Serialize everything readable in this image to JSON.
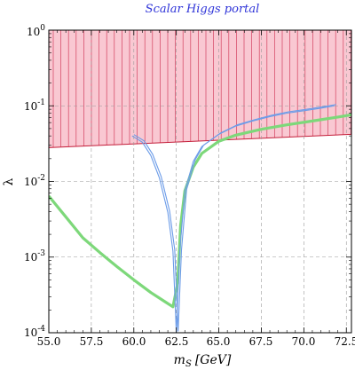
{
  "chart_data": {
    "type": "line",
    "title": "Scalar Higgs portal",
    "xlabel": "m",
    "xlabel_sub": "S",
    "xlabel_unit": "[GeV]",
    "ylabel": "λ",
    "xlim": [
      55.0,
      72.8
    ],
    "ylim": [
      0.0001,
      1
    ],
    "yscale": "log",
    "grid": true,
    "x_ticks": [
      "55.0",
      "57.5",
      "60.0",
      "62.5",
      "65.0",
      "67.5",
      "70.0",
      "72.5"
    ],
    "x_tick_values": [
      55.0,
      57.5,
      60.0,
      62.5,
      65.0,
      67.5,
      70.0,
      72.5
    ],
    "y_tick_values": [
      0.0001,
      0.001,
      0.01,
      0.1,
      1
    ],
    "y_ticks": [
      {
        "base": "10",
        "exp": "-4"
      },
      {
        "base": "10",
        "exp": "-3"
      },
      {
        "base": "10",
        "exp": "-2"
      },
      {
        "base": "10",
        "exp": "-1"
      },
      {
        "base": "10",
        "exp": "0"
      }
    ],
    "excluded_region": {
      "lower_boundary": [
        [
          55.0,
          0.028
        ],
        [
          72.8,
          0.042
        ]
      ],
      "fill": "#f9c8d2",
      "hatch": "#d2405f",
      "edge": "#c41e3a"
    },
    "series": [
      {
        "color": "#7dd87a",
        "points": [
          [
            55.0,
            0.0064
          ],
          [
            56.0,
            0.0034
          ],
          [
            57.0,
            0.0018
          ],
          [
            58.0,
            0.00115
          ],
          [
            59.0,
            0.00075
          ],
          [
            60.0,
            0.0005
          ],
          [
            61.0,
            0.00034
          ],
          [
            61.8,
            0.00026
          ],
          [
            62.3,
            0.00022
          ],
          [
            62.58,
            0.00045
          ],
          [
            62.75,
            0.0026
          ],
          [
            63.0,
            0.0075
          ],
          [
            63.5,
            0.0155
          ],
          [
            64.0,
            0.0235
          ],
          [
            65.0,
            0.034
          ],
          [
            66.0,
            0.041
          ],
          [
            67.5,
            0.049
          ],
          [
            69.0,
            0.056
          ],
          [
            70.5,
            0.063
          ],
          [
            72.0,
            0.071
          ],
          [
            72.8,
            0.076
          ]
        ]
      },
      {
        "color": "#6c9ce8",
        "points": [
          [
            59.9,
            0.04
          ],
          [
            60.5,
            0.033
          ],
          [
            61.0,
            0.022
          ],
          [
            61.5,
            0.0112
          ],
          [
            62.0,
            0.0039
          ],
          [
            62.3,
            0.0012
          ],
          [
            62.5,
            0.0001
          ],
          [
            62.7,
            0.0012
          ],
          [
            63.0,
            0.0075
          ],
          [
            63.5,
            0.0185
          ],
          [
            64.0,
            0.029
          ],
          [
            65.0,
            0.042
          ],
          [
            66.0,
            0.054
          ],
          [
            67.0,
            0.063
          ],
          [
            68.0,
            0.072
          ],
          [
            69.0,
            0.08
          ],
          [
            70.0,
            0.086
          ],
          [
            71.0,
            0.093
          ],
          [
            71.8,
            0.1
          ]
        ]
      }
    ]
  }
}
